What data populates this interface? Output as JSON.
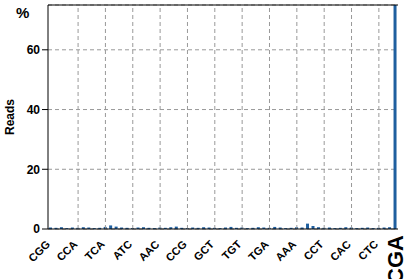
{
  "chart_data": {
    "type": "bar",
    "y_label": "Reads",
    "annotations": [
      "%"
    ],
    "categories": [
      "CGG",
      null,
      null,
      null,
      null,
      "CCA",
      null,
      null,
      null,
      null,
      "TCA",
      null,
      null,
      null,
      null,
      "ATC",
      null,
      null,
      null,
      null,
      "AAC",
      null,
      null,
      null,
      null,
      "CCG",
      null,
      null,
      null,
      null,
      "GCT",
      null,
      null,
      null,
      null,
      "TGT",
      null,
      null,
      null,
      null,
      "TGA",
      null,
      null,
      null,
      null,
      "AAA",
      null,
      null,
      null,
      null,
      "CCT",
      null,
      null,
      null,
      null,
      "CAC",
      null,
      null,
      null,
      null,
      "CTC",
      null,
      null,
      "CGA"
    ],
    "values": [
      0.5,
      0.4,
      0.6,
      0.3,
      0.5,
      0.4,
      0.6,
      0.5,
      0.3,
      0.4,
      0.7,
      1.2,
      0.8,
      0.5,
      0.4,
      0.3,
      0.5,
      0.6,
      0.4,
      0.3,
      0.5,
      0.4,
      0.6,
      0.8,
      0.4,
      0.3,
      0.5,
      0.4,
      0.6,
      0.5,
      0.4,
      0.3,
      0.5,
      0.7,
      0.4,
      0.5,
      0.3,
      0.4,
      0.6,
      0.5,
      0.4,
      0.7,
      0.5,
      0.3,
      0.4,
      0.6,
      0.5,
      1.8,
      1.0,
      0.6,
      0.4,
      0.5,
      0.3,
      0.4,
      0.6,
      0.5,
      0.3,
      0.4,
      0.5,
      0.3,
      0.4,
      0.5,
      0.6,
      75
    ],
    "color": "#1f5f9f",
    "ylim": [
      0,
      75
    ],
    "yticks": [
      0,
      20,
      40,
      60
    ],
    "grid": true
  }
}
